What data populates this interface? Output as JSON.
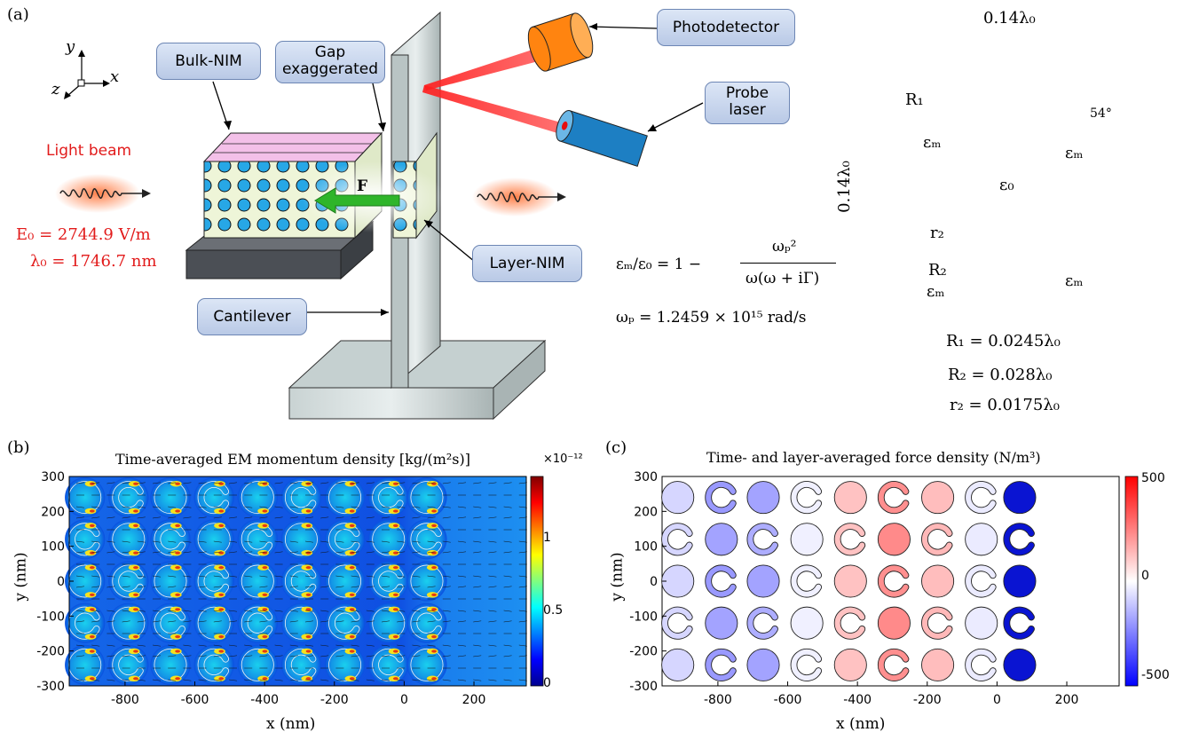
{
  "panel_a": {
    "label": "(a)",
    "callouts": {
      "bulk_nim": "Bulk-NIM",
      "gap_line1": "Gap",
      "gap_line2": "exaggerated",
      "photodetector": "Photodetector",
      "probe_line1": "Probe",
      "probe_line2": "laser",
      "layer_nim": "Layer-NIM",
      "cantilever": "Cantilever"
    },
    "axes": {
      "x": "x",
      "y": "y",
      "z": "z"
    },
    "force_label": "F",
    "light_beam": "Light beam",
    "e0": "E₀ = 2744.9 V/m",
    "lambda0": "λ₀ = 1746.7 nm",
    "eps_eq_lhs": "εₘ/ε₀ = 1 −",
    "eps_eq_num": "ωₚ²",
    "eps_eq_den": "ω(ω + iΓ)",
    "omega_p": "ωₚ = 1.2459 × 10¹⁵ rad/s",
    "cell": {
      "width_label": "0.14λ₀",
      "height_label": "0.14λ₀",
      "r1_label": "R₁",
      "r2_label": "R₂",
      "r2s_label": "r₂",
      "angle_label": "54°",
      "eps_m": "εₘ",
      "eps_0": "ε₀",
      "R1": "R₁ = 0.0245λ₀",
      "R2": "R₂ = 0.028λ₀",
      "r2": "r₂ = 0.0175λ₀"
    }
  },
  "panel_b": {
    "label": "(b)",
    "title": "Time-averaged EM momentum density [kg/(m²s)]",
    "xlabel": "x (nm)",
    "ylabel": "y (nm)",
    "colorbar_exponent": "×10⁻¹²",
    "colorbar_ticks": [
      "1",
      "0.5",
      "0"
    ],
    "colors": {
      "low": "#0a2bd6",
      "mid": "#19c9ee",
      "high": "#e83315"
    }
  },
  "panel_c": {
    "label": "(c)",
    "title": "Time- and layer-averaged force density (N/m³)",
    "xlabel": "x (nm)",
    "ylabel": "y (nm)",
    "colorbar_ticks": [
      "500",
      "0",
      "-500"
    ]
  },
  "chart_data": [
    {
      "type": "heatmap",
      "title": "Time-averaged EM momentum density [kg/(m²s)]",
      "xlabel": "x (nm)",
      "ylabel": "y (nm)",
      "xlim": [
        -960,
        350
      ],
      "ylim": [
        -300,
        300
      ],
      "x_ticks": [
        "-800",
        "-600",
        "-400",
        "-200",
        "0",
        "200"
      ],
      "y_ticks": [
        "300",
        "200",
        "100",
        "0",
        "-100",
        "-200",
        "-300"
      ],
      "colorbar": {
        "range": [
          0,
          1.35e-12
        ],
        "ticks": [
          0,
          0.5,
          1
        ],
        "exponent": "×10⁻¹²"
      },
      "inclusions": {
        "columns_x_nm": [
          -915,
          -790,
          -670,
          -545,
          -420,
          -295,
          -170,
          -45,
          65
        ],
        "rows_y_nm": [
          240,
          120,
          0,
          -120,
          -240
        ]
      }
    },
    {
      "type": "heatmap",
      "title": "Time- and layer-averaged force density (N/m³)",
      "xlabel": "x (nm)",
      "ylabel": "y (nm)",
      "xlim": [
        -960,
        350
      ],
      "ylim": [
        -300,
        300
      ],
      "x_ticks": [
        "-800",
        "-600",
        "-400",
        "-200",
        "0",
        "200"
      ],
      "y_ticks": [
        "300",
        "200",
        "100",
        "0",
        "-100",
        "-200",
        "-300"
      ],
      "colorbar": {
        "range": [
          -500,
          500
        ],
        "ticks": [
          500,
          0,
          -500
        ]
      },
      "columns_x_nm": [
        -915,
        -790,
        -670,
        -545,
        -420,
        -295,
        -170,
        -45,
        65
      ],
      "rows_y_nm": [
        240,
        120,
        0,
        -120,
        -240
      ],
      "shapes": [
        [
          "circle",
          "crescent",
          "circle",
          "crescent",
          "circle",
          "crescent",
          "circle",
          "crescent",
          "circle"
        ],
        [
          "crescent",
          "circle",
          "crescent",
          "circle",
          "crescent",
          "circle",
          "crescent",
          "circle",
          "crescent"
        ],
        [
          "circle",
          "crescent",
          "circle",
          "crescent",
          "circle",
          "crescent",
          "circle",
          "crescent",
          "circle"
        ],
        [
          "crescent",
          "circle",
          "crescent",
          "circle",
          "crescent",
          "circle",
          "crescent",
          "circle",
          "crescent"
        ],
        [
          "circle",
          "crescent",
          "circle",
          "crescent",
          "circle",
          "crescent",
          "circle",
          "crescent",
          "circle"
        ]
      ],
      "values": [
        [
          -80,
          -200,
          -180,
          -30,
          120,
          220,
          130,
          -40,
          -500
        ],
        [
          -80,
          -180,
          -160,
          -30,
          120,
          230,
          140,
          -40,
          -500
        ],
        [
          -80,
          -200,
          -180,
          -30,
          120,
          220,
          130,
          -40,
          -500
        ],
        [
          -80,
          -180,
          -160,
          -30,
          120,
          230,
          140,
          -40,
          -500
        ],
        [
          -80,
          -200,
          -180,
          -30,
          120,
          220,
          130,
          -40,
          -500
        ]
      ]
    }
  ]
}
